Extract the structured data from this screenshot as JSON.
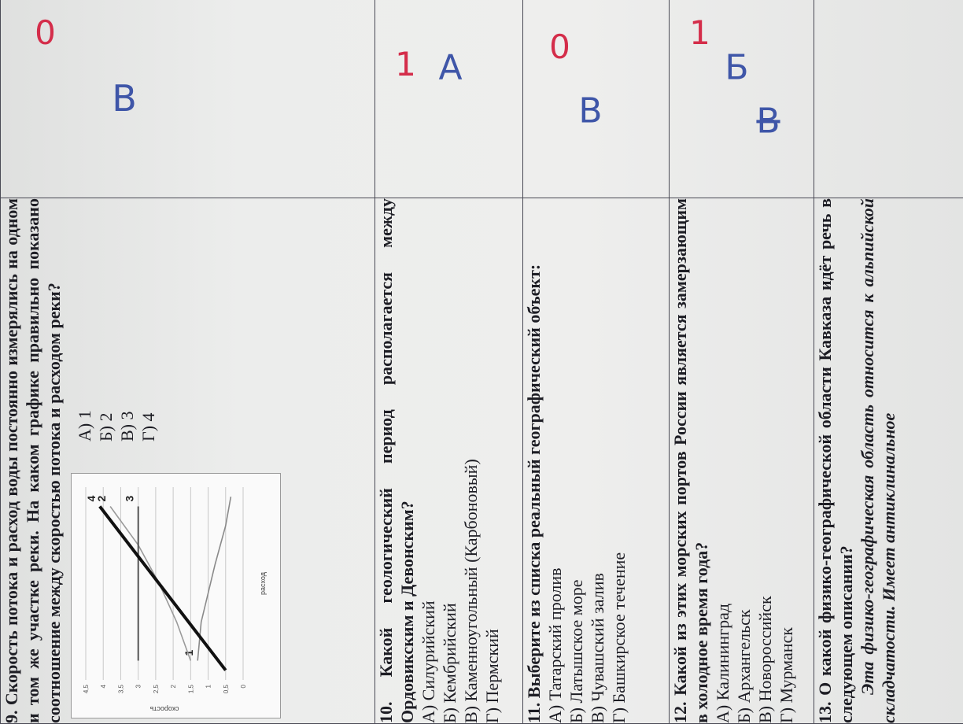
{
  "rows": [
    {
      "id": "q9",
      "number": "9.",
      "title": "Скорость потока и расход воды постоянно измерялись на одном и том же участке реки. На каком графике правильно показано соотношение между скоростью потока и расходом реки?",
      "options": [
        "А) 1",
        "Б) 2",
        "В) 3",
        "Г) 4"
      ],
      "answer_handwritten": "В",
      "mark": "0"
    },
    {
      "id": "q10",
      "number": "10.",
      "title": "Какой геологический период располагается между Ордовикским и Девонским?",
      "options": [
        "А) Силурийский",
        "Б) Кембрийский",
        "В) Каменноугольный (Карбоновый)",
        "Г) Пермский"
      ],
      "answer_handwritten": "А",
      "mark": "1"
    },
    {
      "id": "q11",
      "number": "11.",
      "title": "Выберите из списка реальный географический объект:",
      "options": [
        "А) Татарский пролив",
        "Б) Латышское море",
        "В) Чувашский залив",
        "Г) Башкирское течение"
      ],
      "answer_handwritten": "В",
      "mark": "0"
    },
    {
      "id": "q12",
      "number": "12.",
      "title": "Какой из этих морских портов России является замерзающим в холодное время года?",
      "options": [
        "А) Калининград",
        "Б) Архангельск",
        "В) Новороссийск",
        "Г) Мурманск"
      ],
      "answer_handwritten": "Б",
      "answer_crossed": "В",
      "mark": "1"
    },
    {
      "id": "q13",
      "number": "13.",
      "title": "О какой физико-географической области Кавказа идёт речь в следующем описании?",
      "description": "Эта физико-географическая область относится к альпийской складчатости. Имеет антиклинальное"
    }
  ],
  "chart_data": {
    "type": "line",
    "ylabel": "скорость",
    "xlabel": "расход",
    "yticks": [
      "0",
      "0,5",
      "1",
      "1,5",
      "2",
      "2,5",
      "3",
      "3,5",
      "4",
      "4,5"
    ],
    "ylim": [
      0,
      4.5
    ],
    "series": [
      {
        "name": "1",
        "points": [
          [
            0.1,
            1.3
          ],
          [
            0.3,
            1.2
          ],
          [
            0.6,
            0.8
          ],
          [
            0.8,
            0.5
          ],
          [
            0.95,
            0.35
          ]
        ]
      },
      {
        "name": "2",
        "points": [
          [
            0.1,
            1.5
          ],
          [
            0.3,
            1.9
          ],
          [
            0.5,
            2.4
          ],
          [
            0.7,
            3.0
          ],
          [
            0.9,
            3.8
          ]
        ]
      },
      {
        "name": "3",
        "points": [
          [
            0.1,
            3.0
          ],
          [
            0.9,
            3.0
          ]
        ]
      },
      {
        "name": "4",
        "points": [
          [
            0.05,
            0.5
          ],
          [
            0.9,
            4.1
          ]
        ]
      }
    ]
  }
}
